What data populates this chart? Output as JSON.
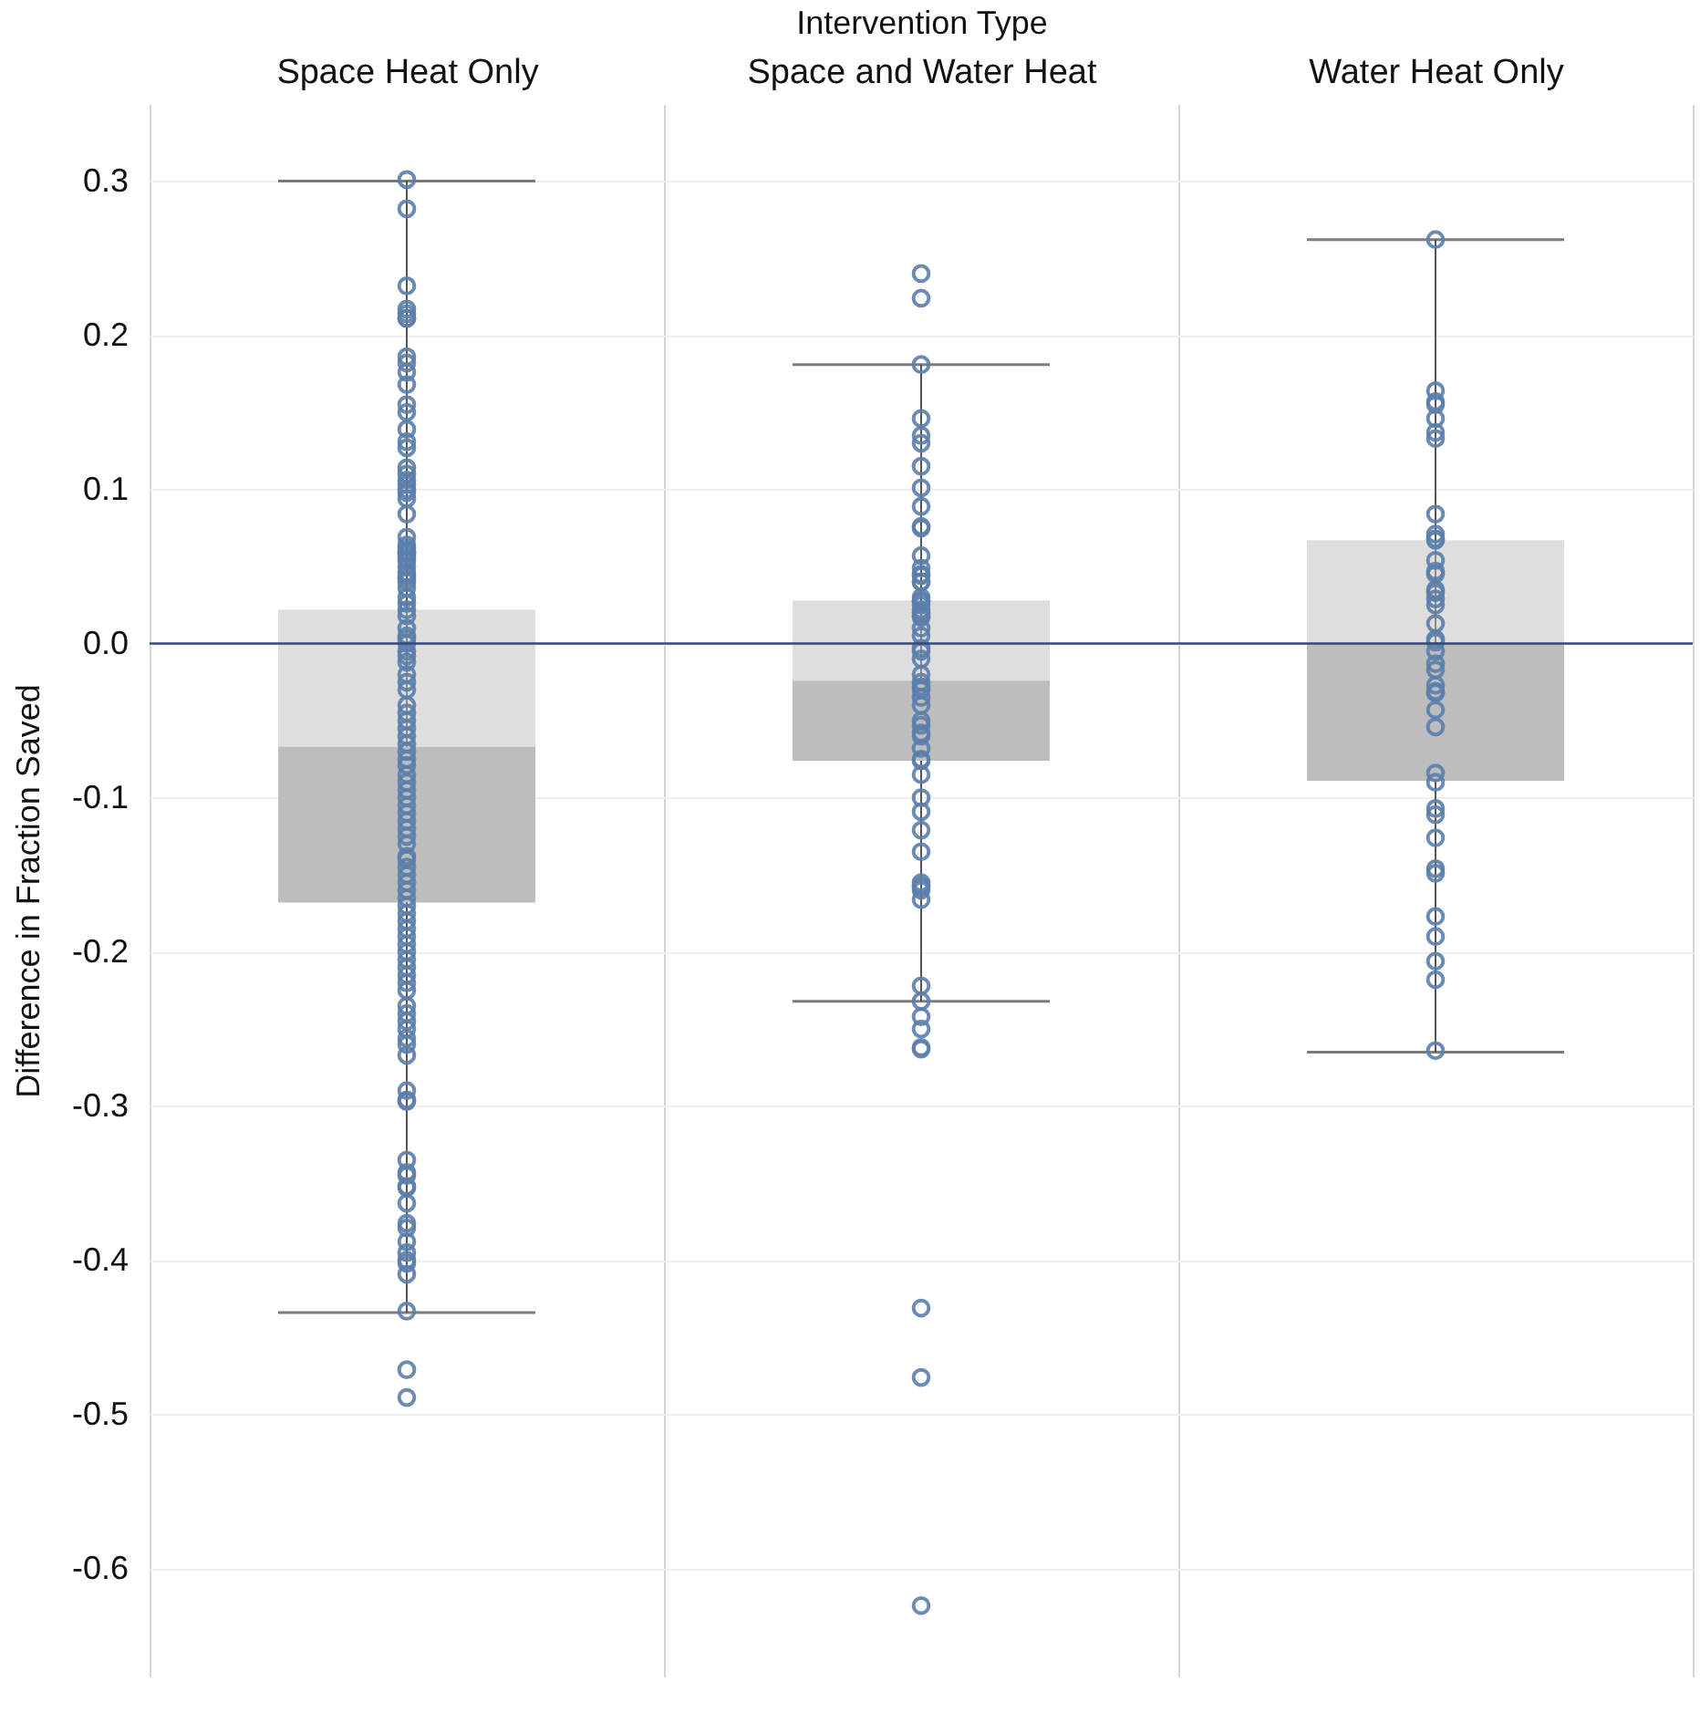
{
  "chart_data": {
    "type": "box",
    "xlabel": "Intervention Type",
    "ylabel": "Difference in Fraction Saved",
    "categories": [
      "Space Heat Only",
      "Space and Water Heat",
      "Water Heat Only"
    ],
    "ylim": [
      -0.67,
      0.35
    ],
    "yticks": [
      0.3,
      0.2,
      0.1,
      {
        "value": 0,
        "label": "0.0"
      },
      -0.1,
      -0.2,
      -0.3,
      -0.4,
      -0.5,
      -0.6
    ],
    "grid": true,
    "marker": "circle",
    "ref_lines": [
      {
        "axis": "y",
        "value": 0,
        "color": "#34497a"
      }
    ],
    "series": [
      {
        "color": "#bdbdbd",
        "boxes": [
          {
            "low": -0.434,
            "q1": -0.168,
            "median": -0.067,
            "q3": 0.022,
            "high": 0.3
          },
          {
            "low": -0.232,
            "q1": -0.076,
            "median": -0.024,
            "q3": 0.028,
            "high": 0.181
          },
          {
            "low": -0.265,
            "q1": -0.089,
            "median": 0.0,
            "q3": 0.067,
            "high": 0.262
          }
        ]
      },
      {
        "type": "scatter",
        "color": "#5b7fab",
        "x": [
          "Space Heat Only",
          "Space Heat Only",
          "Space Heat Only",
          "Space Heat Only",
          "Space Heat Only",
          "Space Heat Only",
          "Space Heat Only",
          "Space Heat Only",
          "Space Heat Only",
          "Space Heat Only",
          "Space Heat Only",
          "Space Heat Only",
          "Space Heat Only",
          "Space Heat Only",
          "Space Heat Only",
          "Space Heat Only",
          "Space Heat Only",
          "Space Heat Only",
          "Space Heat Only",
          "Space Heat Only",
          "Space Heat Only",
          "Space Heat Only",
          "Space Heat Only",
          "Space Heat Only",
          "Space Heat Only",
          "Space Heat Only",
          "Space Heat Only",
          "Space Heat Only",
          "Space Heat Only",
          "Space Heat Only",
          "Space Heat Only",
          "Space Heat Only",
          "Space Heat Only",
          "Space Heat Only",
          "Space Heat Only",
          "Space Heat Only",
          "Space Heat Only",
          "Space Heat Only",
          "Space Heat Only",
          "Space Heat Only",
          "Space Heat Only",
          "Space Heat Only",
          "Space Heat Only",
          "Space Heat Only",
          "Space Heat Only",
          "Space Heat Only",
          "Space Heat Only",
          "Space Heat Only",
          "Space Heat Only",
          "Space Heat Only",
          "Space Heat Only",
          "Space Heat Only",
          "Space Heat Only",
          "Space Heat Only",
          "Space Heat Only",
          "Space Heat Only",
          "Space Heat Only",
          "Space Heat Only",
          "Space Heat Only",
          "Space Heat Only",
          "Space Heat Only",
          "Space Heat Only",
          "Space Heat Only",
          "Space Heat Only",
          "Space Heat Only",
          "Space Heat Only",
          "Space Heat Only",
          "Space Heat Only",
          "Space Heat Only",
          "Space Heat Only",
          "Space Heat Only",
          "Space Heat Only",
          "Space Heat Only",
          "Space Heat Only",
          "Space Heat Only",
          "Space Heat Only",
          "Space Heat Only",
          "Space Heat Only",
          "Space Heat Only",
          "Space Heat Only",
          "Space Heat Only",
          "Space Heat Only",
          "Space Heat Only",
          "Space Heat Only",
          "Space Heat Only",
          "Space Heat Only",
          "Space Heat Only",
          "Space Heat Only",
          "Space Heat Only",
          "Space Heat Only",
          "Space Heat Only",
          "Space Heat Only",
          "Space Heat Only",
          "Space Heat Only",
          "Space Heat Only",
          "Space Heat Only",
          "Space Heat Only",
          "Space Heat Only",
          "Space Heat Only",
          "Space Heat Only",
          "Space Heat Only",
          "Space Heat Only",
          "Space Heat Only",
          "Space Heat Only",
          "Space Heat Only",
          "Space Heat Only",
          "Space Heat Only",
          "Space Heat Only",
          "Space Heat Only",
          "Space Heat Only",
          "Space Heat Only",
          "Space Heat Only",
          "Space Heat Only",
          "Space Heat Only",
          "Space Heat Only",
          "Space Heat Only",
          "Space and Water Heat",
          "Space and Water Heat",
          "Space and Water Heat",
          "Space and Water Heat",
          "Space and Water Heat",
          "Space and Water Heat",
          "Space and Water Heat",
          "Space and Water Heat",
          "Space and Water Heat",
          "Space and Water Heat",
          "Space and Water Heat",
          "Space and Water Heat",
          "Space and Water Heat",
          "Space and Water Heat",
          "Space and Water Heat",
          "Space and Water Heat",
          "Space and Water Heat",
          "Space and Water Heat",
          "Space and Water Heat",
          "Space and Water Heat",
          "Space and Water Heat",
          "Space and Water Heat",
          "Space and Water Heat",
          "Space and Water Heat",
          "Space and Water Heat",
          "Space and Water Heat",
          "Space and Water Heat",
          "Space and Water Heat",
          "Space and Water Heat",
          "Space and Water Heat",
          "Space and Water Heat",
          "Space and Water Heat",
          "Space and Water Heat",
          "Space and Water Heat",
          "Space and Water Heat",
          "Space and Water Heat",
          "Space and Water Heat",
          "Space and Water Heat",
          "Space and Water Heat",
          "Space and Water Heat",
          "Space and Water Heat",
          "Space and Water Heat",
          "Space and Water Heat",
          "Space and Water Heat",
          "Space and Water Heat",
          "Space and Water Heat",
          "Space and Water Heat",
          "Space and Water Heat",
          "Space and Water Heat",
          "Space and Water Heat",
          "Space and Water Heat",
          "Space and Water Heat",
          "Space and Water Heat",
          "Space and Water Heat",
          "Space and Water Heat",
          "Space and Water Heat",
          "Space and Water Heat",
          "Space and Water Heat",
          "Space and Water Heat",
          "Space and Water Heat",
          "Space and Water Heat",
          "Space and Water Heat",
          "Water Heat Only",
          "Water Heat Only",
          "Water Heat Only",
          "Water Heat Only",
          "Water Heat Only",
          "Water Heat Only",
          "Water Heat Only",
          "Water Heat Only",
          "Water Heat Only",
          "Water Heat Only",
          "Water Heat Only",
          "Water Heat Only",
          "Water Heat Only",
          "Water Heat Only",
          "Water Heat Only",
          "Water Heat Only",
          "Water Heat Only",
          "Water Heat Only",
          "Water Heat Only",
          "Water Heat Only",
          "Water Heat Only",
          "Water Heat Only",
          "Water Heat Only",
          "Water Heat Only",
          "Water Heat Only",
          "Water Heat Only",
          "Water Heat Only",
          "Water Heat Only",
          "Water Heat Only",
          "Water Heat Only",
          "Water Heat Only",
          "Water Heat Only",
          "Water Heat Only",
          "Water Heat Only",
          "Water Heat Only",
          "Water Heat Only",
          "Water Heat Only",
          "Water Heat Only",
          "Water Heat Only",
          "Water Heat Only",
          "Water Heat Only"
        ],
        "values": [
          0.301,
          0.282,
          0.232,
          0.217,
          0.214,
          0.211,
          0.211,
          0.186,
          0.182,
          0.176,
          0.168,
          0.155,
          0.15,
          0.139,
          0.131,
          0.127,
          0.114,
          0.11,
          0.106,
          0.103,
          0.1,
          0.098,
          0.094,
          0.084,
          0.069,
          0.064,
          0.062,
          0.06,
          0.059,
          0.058,
          0.056,
          0.054,
          0.05,
          0.046,
          0.044,
          0.042,
          0.04,
          0.036,
          0.03,
          0.026,
          0.022,
          0.018,
          0.01,
          0.005,
          0.003,
          0.0,
          -0.005,
          -0.008,
          -0.012,
          -0.02,
          -0.025,
          -0.03,
          -0.04,
          -0.045,
          -0.05,
          -0.055,
          -0.06,
          -0.065,
          -0.07,
          -0.075,
          -0.079,
          -0.085,
          -0.09,
          -0.095,
          -0.1,
          -0.105,
          -0.11,
          -0.115,
          -0.12,
          -0.125,
          -0.13,
          -0.138,
          -0.14,
          -0.145,
          -0.15,
          -0.155,
          -0.16,
          -0.165,
          -0.17,
          -0.175,
          -0.18,
          -0.185,
          -0.19,
          -0.195,
          -0.2,
          -0.205,
          -0.21,
          -0.215,
          -0.22,
          -0.225,
          -0.235,
          -0.24,
          -0.245,
          -0.25,
          -0.256,
          -0.26,
          -0.267,
          -0.29,
          -0.296,
          -0.297,
          -0.335,
          -0.343,
          -0.345,
          -0.352,
          -0.353,
          -0.363,
          -0.376,
          -0.379,
          -0.388,
          -0.395,
          -0.4,
          -0.402,
          -0.409,
          -0.433,
          -0.471,
          -0.489,
          0.24,
          0.224,
          0.181,
          0.146,
          0.135,
          0.13,
          0.115,
          0.101,
          0.089,
          0.076,
          0.075,
          0.057,
          0.049,
          0.045,
          0.044,
          0.04,
          0.04,
          0.03,
          0.028,
          0.027,
          0.025,
          0.022,
          0.02,
          0.018,
          0.017,
          0.01,
          0.005,
          -0.003,
          -0.005,
          -0.01,
          -0.02,
          -0.025,
          -0.028,
          -0.03,
          -0.035,
          -0.04,
          -0.05,
          -0.053,
          -0.058,
          -0.06,
          -0.068,
          -0.075,
          -0.076,
          -0.085,
          -0.1,
          -0.109,
          -0.121,
          -0.135,
          -0.155,
          -0.157,
          -0.158,
          -0.16,
          -0.166,
          -0.222,
          -0.232,
          -0.242,
          -0.25,
          -0.262,
          -0.263,
          -0.431,
          -0.476,
          -0.624,
          0.262,
          0.164,
          0.157,
          0.155,
          0.146,
          0.137,
          0.133,
          0.084,
          0.071,
          0.068,
          0.067,
          0.054,
          0.047,
          0.045,
          0.035,
          0.033,
          0.029,
          0.025,
          0.013,
          0.003,
          0.001,
          -0.005,
          -0.013,
          -0.017,
          -0.027,
          -0.031,
          -0.032,
          -0.043,
          -0.054,
          -0.084,
          -0.09,
          -0.107,
          -0.111,
          -0.126,
          -0.146,
          -0.149,
          -0.177,
          -0.19,
          -0.206,
          -0.218,
          -0.264
        ]
      }
    ]
  }
}
